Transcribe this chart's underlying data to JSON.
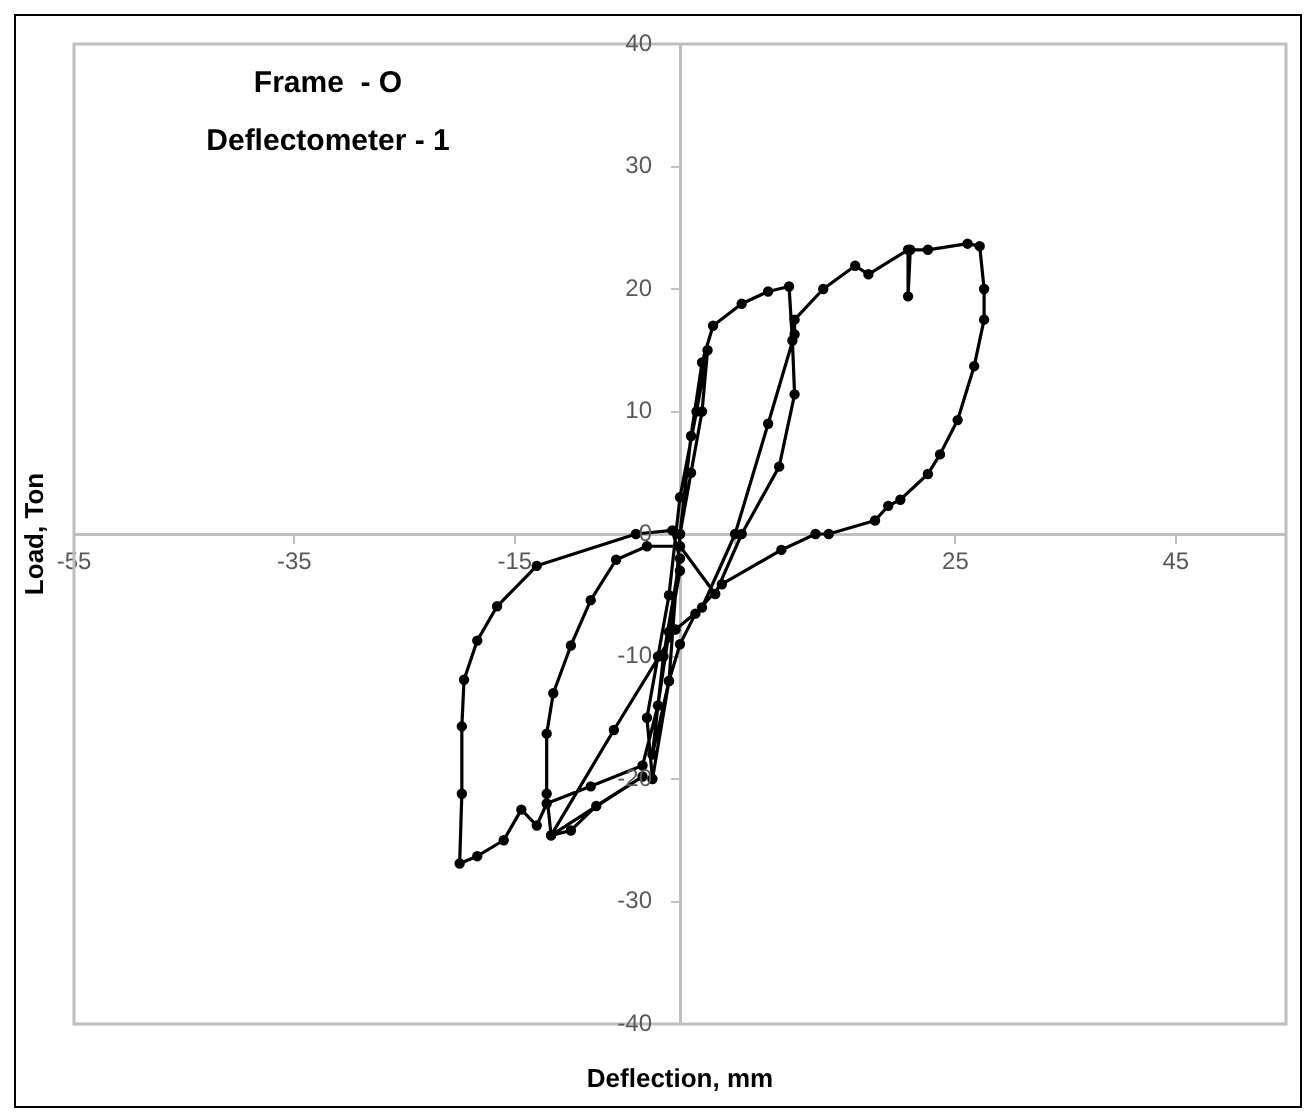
{
  "chart_data": {
    "type": "line",
    "title": "Frame  - O",
    "subtitle": "Deflectometer - 1",
    "xlabel": "Deflection, mm",
    "ylabel": "Load, Ton",
    "xlim": [
      -55,
      55
    ],
    "xticks": [
      -55,
      -35,
      -15,
      {
        "value": 5,
        "label": null
      },
      25,
      45
    ],
    "ylim": [
      -40,
      40
    ],
    "yticks": [
      -40,
      -30,
      -20,
      -10,
      0,
      10,
      20,
      30,
      40
    ],
    "marker": "circle",
    "line_style": "solid",
    "series": [
      {
        "color": "#000000",
        "x": [
          0,
          1,
          2,
          2.5,
          1.5,
          0,
          -1,
          -2,
          -3,
          -2.5,
          -1,
          0,
          1,
          2,
          3,
          5.6,
          8,
          9.9,
          10.2,
          10.4,
          9,
          5.6,
          3.2,
          0,
          -3,
          -5.8,
          -8.1,
          -9.9,
          -11.5,
          -12.1,
          -12.1,
          -11.7,
          -9.9,
          -7.6,
          -3.4,
          -11.7,
          -6,
          -0.4,
          2,
          5,
          8,
          10.4,
          10.4,
          13,
          15.9,
          17.1,
          20.7,
          20.7,
          20.9,
          22.5,
          26.1,
          27.2,
          27.6,
          27.6,
          26.7,
          25.2,
          23.6,
          22.5,
          20,
          18.9,
          17.7,
          13.5,
          12.3,
          9.2,
          3.8,
          1.4,
          0,
          -1,
          -2.5,
          -1.5,
          0,
          -0.7,
          -4,
          -13,
          -16.6,
          -18.4,
          -19.6,
          -19.8,
          -19.8,
          -20,
          -18.4,
          -16,
          -14.4,
          -13,
          -12.1,
          -8.1,
          -3.4,
          -2,
          -1,
          0
        ],
        "values": [
          0,
          5,
          10,
          15,
          10,
          3,
          -5,
          -10,
          -15,
          -20,
          -12,
          0,
          8,
          14,
          17,
          18.8,
          19.8,
          20.2,
          15.8,
          11.4,
          5.5,
          0,
          -4.9,
          -1,
          -1,
          -2.1,
          -5.4,
          -9.1,
          -13,
          -16.3,
          -21.2,
          -24.6,
          -24.2,
          -22.2,
          -19.8,
          -24.6,
          -16,
          -7.8,
          -6,
          0,
          9,
          16.3,
          17.5,
          20,
          21.9,
          21.2,
          23.2,
          19.4,
          23.2,
          23.2,
          23.7,
          23.5,
          20,
          17.5,
          13.7,
          9.3,
          6.5,
          4.9,
          2.8,
          2.3,
          1.1,
          0,
          0,
          -1.3,
          -4.1,
          -6.5,
          -9,
          -12,
          -18,
          -10,
          -2,
          0.3,
          0,
          -2.6,
          -5.9,
          -8.7,
          -11.9,
          -15.7,
          -21.2,
          -26.9,
          -26.3,
          -25,
          -22.5,
          -23.8,
          -22,
          -20.6,
          -18.9,
          -14,
          -8,
          -3
        ]
      }
    ]
  }
}
